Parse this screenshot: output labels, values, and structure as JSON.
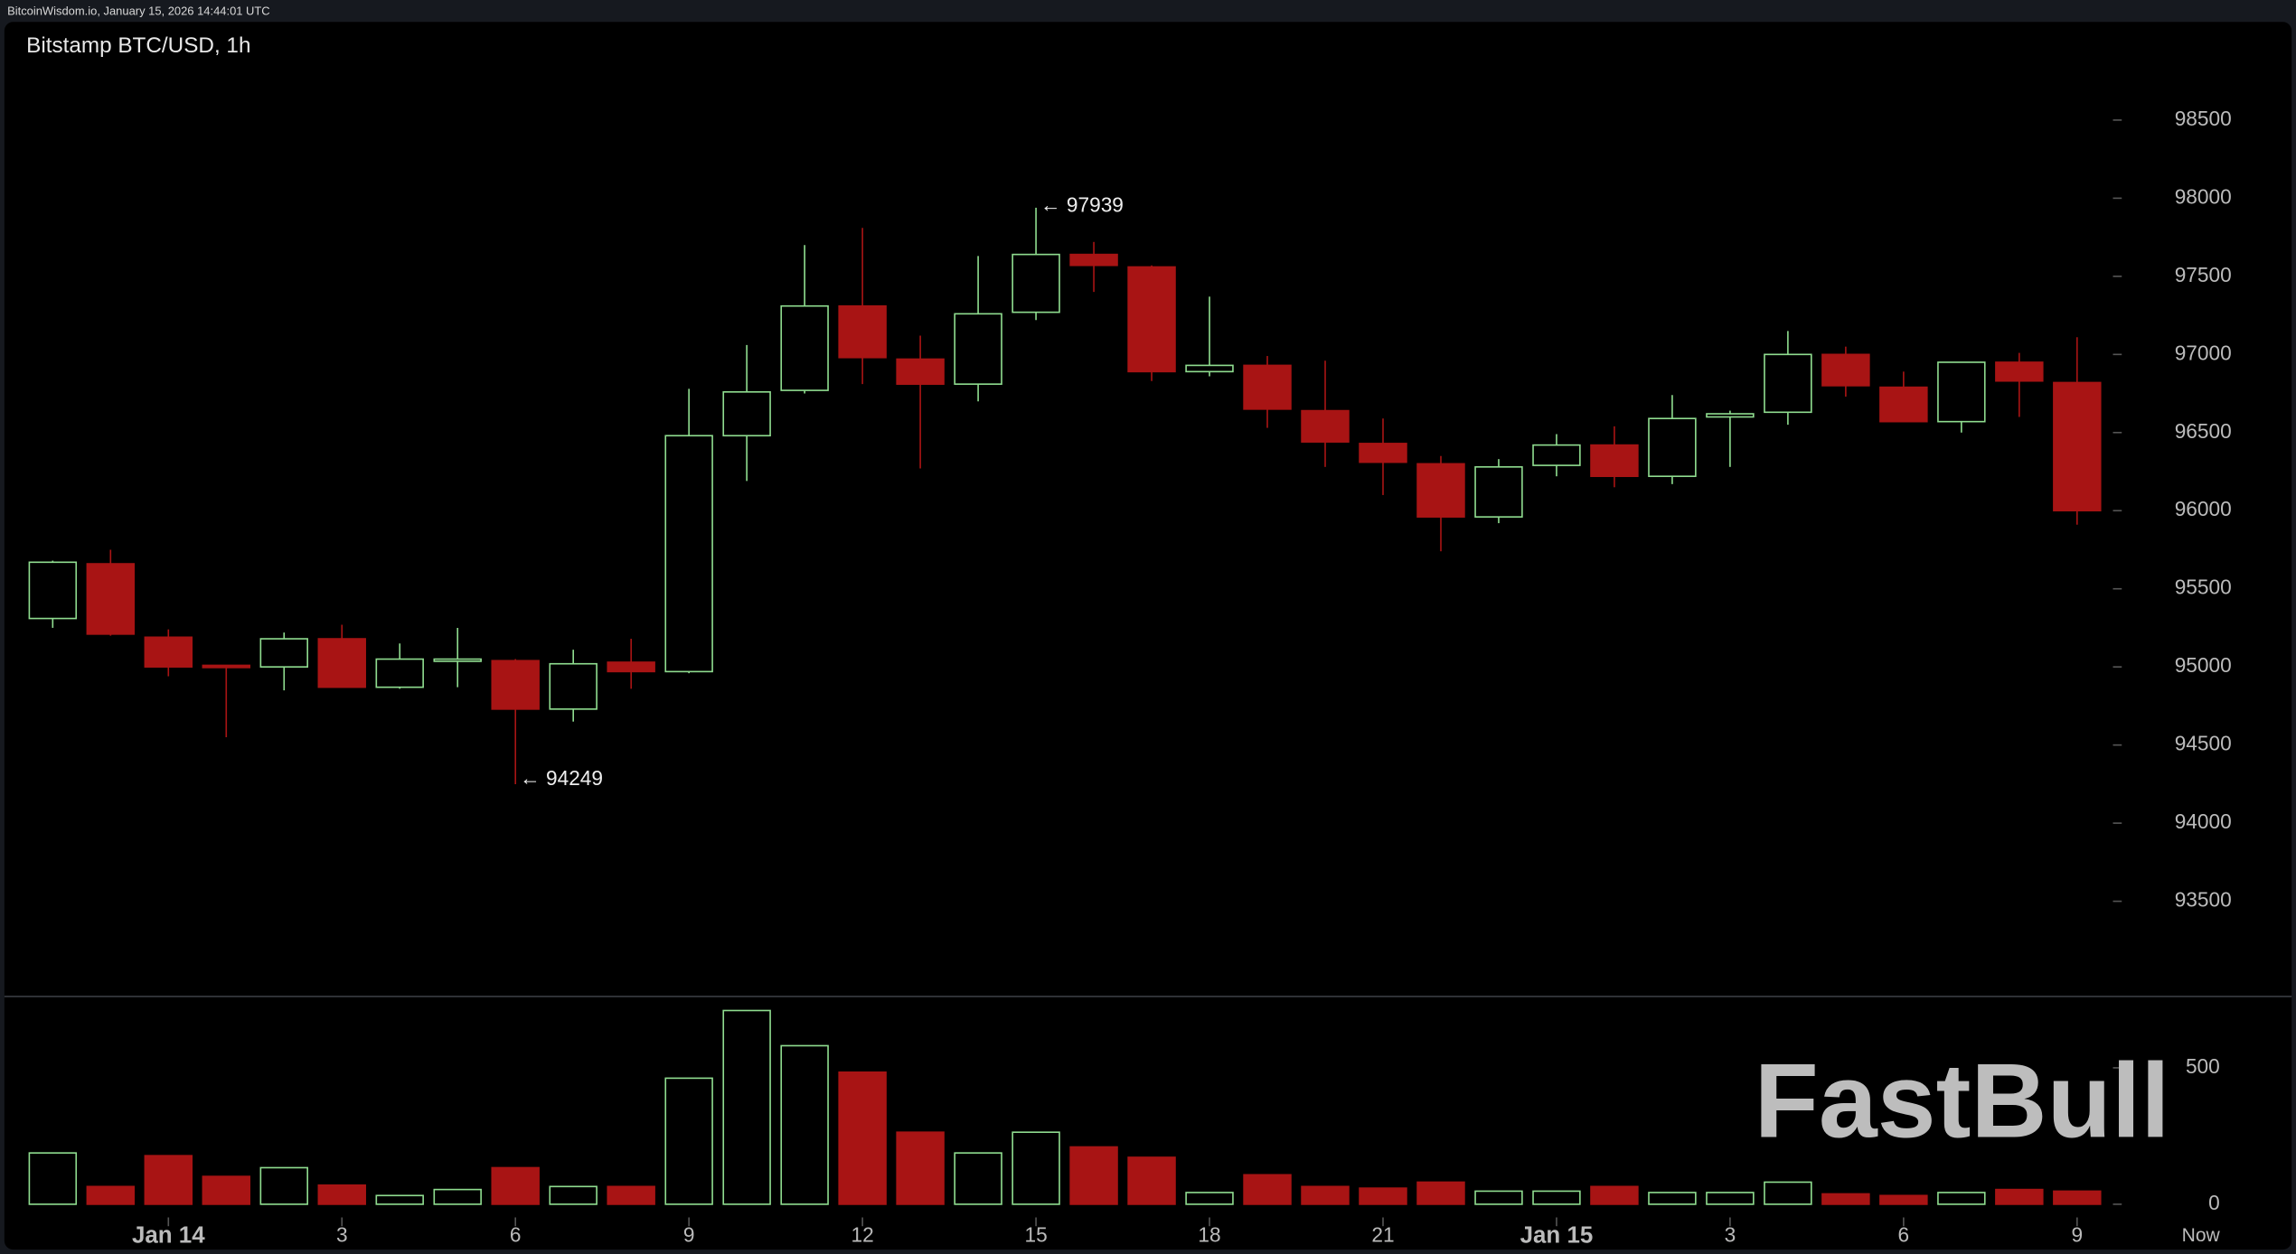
{
  "header": "BitcoinWisdom.io, January 15, 2026 14:44:01 UTC",
  "watermark": "FastBull",
  "chart_data": [
    {
      "type": "candlestick",
      "title": "Bitstamp BTC/USD, 1h",
      "categories": [
        null,
        null,
        "Jan 14",
        null,
        null,
        "3",
        null,
        null,
        "6",
        null,
        null,
        "9",
        null,
        null,
        "12",
        null,
        null,
        "15",
        null,
        null,
        "18",
        null,
        null,
        "21",
        null,
        null,
        "Jan 15",
        null,
        null,
        "3",
        null,
        null,
        "6",
        null,
        null,
        "9"
      ],
      "now_label": "Now",
      "open": [
        95310,
        95660,
        95190,
        95010,
        95000,
        95180,
        94870,
        95040,
        95040,
        94730,
        95030,
        94970,
        96480,
        96770,
        97310,
        96970,
        96810,
        97270,
        97640,
        97560,
        96890,
        96930,
        96640,
        96430,
        96300,
        95960,
        96290,
        96420,
        96220,
        96600,
        96630,
        97000,
        96790,
        96570,
        96950,
        96820
      ],
      "high": [
        95680,
        95750,
        95240,
        95010,
        95220,
        95270,
        95150,
        95250,
        95050,
        95110,
        95180,
        96780,
        97060,
        97700,
        97810,
        97120,
        97630,
        97939,
        97720,
        97570,
        97370,
        96990,
        96960,
        96590,
        96350,
        96330,
        96490,
        96540,
        96740,
        96640,
        97150,
        97050,
        96890,
        96950,
        97010,
        97110
      ],
      "low": [
        95250,
        95200,
        94940,
        94550,
        94850,
        94870,
        94860,
        94870,
        94249,
        94650,
        94860,
        94960,
        96190,
        96750,
        96810,
        96270,
        96700,
        97220,
        97400,
        96830,
        96860,
        96530,
        96280,
        96100,
        95740,
        95920,
        96220,
        96150,
        96170,
        96280,
        96550,
        96730,
        96570,
        96500,
        96600,
        95910
      ],
      "close": [
        95670,
        95210,
        95000,
        95000,
        95180,
        94870,
        95050,
        95050,
        94730,
        95020,
        94970,
        96480,
        96760,
        97310,
        96980,
        96810,
        97260,
        97640,
        97570,
        96890,
        96930,
        96650,
        96440,
        96310,
        95960,
        96280,
        96420,
        96220,
        96590,
        96620,
        97000,
        96800,
        96570,
        96950,
        96830,
        96000
      ],
      "up_color": "#8fdc8f",
      "down_color": "#a81414",
      "max_label": "← 97939",
      "min_label": "← 94249",
      "ylim": [
        92900,
        99100
      ],
      "yticks": [
        93500,
        94000,
        94500,
        95000,
        95500,
        96000,
        96500,
        97000,
        97500,
        98000,
        98500
      ]
    },
    {
      "type": "bar",
      "values": [
        188,
        65,
        178,
        102,
        134,
        70,
        32,
        54,
        134,
        65,
        65,
        462,
        710,
        581,
        484,
        264,
        188,
        264,
        210,
        172,
        43,
        108,
        65,
        59,
        81,
        48,
        48,
        65,
        43,
        43,
        81,
        38,
        32,
        43,
        54,
        48
      ],
      "ylim": [
        0,
        740
      ],
      "yticks": [
        0,
        500
      ]
    }
  ]
}
